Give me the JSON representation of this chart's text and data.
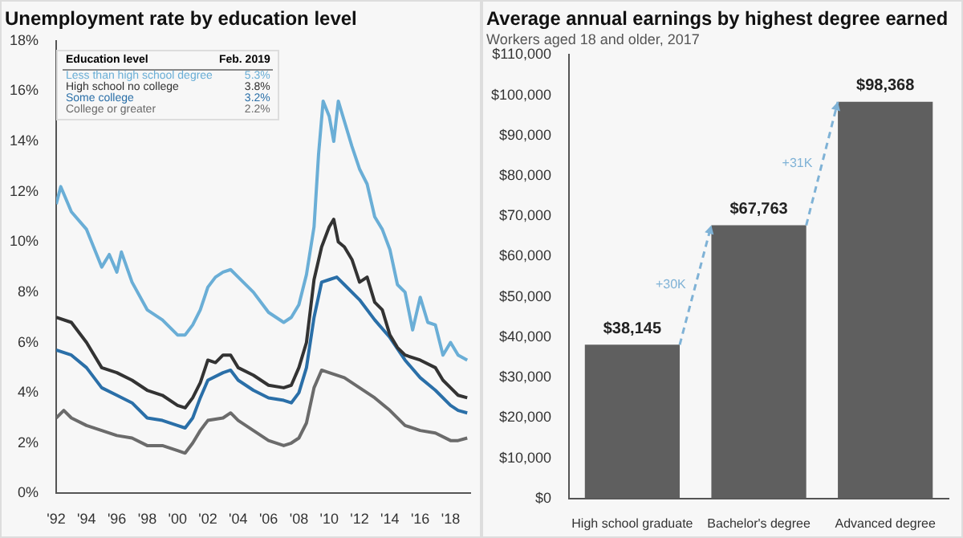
{
  "chart_data": [
    {
      "type": "line",
      "title": "Unemployment rate by education level",
      "legend_title": "Education level",
      "legend": "top left",
      "marker": "none",
      "grid": false,
      "annotations": [
        "Feb. 2019",
        "5.3%",
        "3.8%",
        "3.2%",
        "2.2%"
      ],
      "xlim": [
        1992,
        2019.3
      ],
      "xticks": [
        {
          "value": 1992,
          "label": "'92"
        },
        {
          "value": 1994,
          "label": "'94"
        },
        {
          "value": 1996,
          "label": "'96"
        },
        {
          "value": 1998,
          "label": "'98"
        },
        {
          "value": 2000,
          "label": "'00"
        },
        {
          "value": 2002,
          "label": "'02"
        },
        {
          "value": 2004,
          "label": "'04"
        },
        {
          "value": 2006,
          "label": "'06"
        },
        {
          "value": 2008,
          "label": "'08"
        },
        {
          "value": 2010,
          "label": "'10"
        },
        {
          "value": 2012,
          "label": "'12"
        },
        {
          "value": 2014,
          "label": "'14"
        },
        {
          "value": 2016,
          "label": "'16"
        },
        {
          "value": 2018,
          "label": "'18"
        }
      ],
      "ylim": [
        0,
        18
      ],
      "yticks": [
        {
          "value": 0,
          "label": "0%"
        },
        {
          "value": 2,
          "label": "2%"
        },
        {
          "value": 4,
          "label": "4%"
        },
        {
          "value": 6,
          "label": "6%"
        },
        {
          "value": 8,
          "label": "8%"
        },
        {
          "value": 10,
          "label": "10%"
        },
        {
          "value": 12,
          "label": "12%"
        },
        {
          "value": 14,
          "label": "14%"
        },
        {
          "value": 16,
          "label": "16%"
        },
        {
          "value": 18,
          "label": "18%"
        }
      ],
      "series": [
        {
          "name": "Less than high school degree",
          "color": "#6aaed6",
          "x": [
            1992,
            1992.3,
            1993,
            1994,
            1995,
            1995.5,
            1996,
            1996.3,
            1997,
            1998,
            1999,
            2000,
            2000.5,
            2001,
            2001.5,
            2002,
            2002.5,
            2003,
            2003.5,
            2004,
            2005,
            2006,
            2007,
            2007.5,
            2008,
            2008.5,
            2009,
            2009.3,
            2009.6,
            2010,
            2010.3,
            2010.6,
            2011,
            2011.5,
            2012,
            2012.5,
            2013,
            2013.5,
            2014,
            2014.5,
            2015,
            2015.5,
            2016,
            2016.5,
            2017,
            2017.5,
            2018,
            2018.5,
            2019.1
          ],
          "values": [
            11.5,
            12.2,
            11.2,
            10.5,
            9.0,
            9.5,
            8.8,
            9.6,
            8.4,
            7.3,
            6.9,
            6.3,
            6.3,
            6.7,
            7.3,
            8.2,
            8.6,
            8.8,
            8.9,
            8.6,
            8.0,
            7.2,
            6.8,
            7.0,
            7.5,
            8.7,
            10.6,
            13.5,
            15.6,
            15.0,
            14.0,
            15.6,
            14.8,
            13.8,
            12.9,
            12.3,
            11.0,
            10.5,
            9.7,
            8.3,
            8.0,
            6.5,
            7.8,
            6.8,
            6.7,
            5.5,
            6.0,
            5.5,
            5.3
          ]
        },
        {
          "name": "High school no college",
          "color": "#333333",
          "x": [
            1992,
            1993,
            1994,
            1995,
            1996,
            1997,
            1998,
            1999,
            2000,
            2000.5,
            2001,
            2001.5,
            2002,
            2002.5,
            2003,
            2003.5,
            2004,
            2005,
            2006,
            2007,
            2007.5,
            2008,
            2008.5,
            2009,
            2009.5,
            2010,
            2010.3,
            2010.6,
            2011,
            2011.5,
            2012,
            2012.5,
            2013,
            2013.5,
            2014,
            2014.5,
            2015,
            2016,
            2017,
            2017.5,
            2018,
            2018.5,
            2019.1
          ],
          "values": [
            7.0,
            6.8,
            6.0,
            5.0,
            4.8,
            4.5,
            4.1,
            3.9,
            3.5,
            3.4,
            3.8,
            4.4,
            5.3,
            5.2,
            5.5,
            5.5,
            5.0,
            4.7,
            4.3,
            4.2,
            4.3,
            5.0,
            6.0,
            8.5,
            9.8,
            10.6,
            10.9,
            10.0,
            9.8,
            9.3,
            8.4,
            8.6,
            7.6,
            7.3,
            6.3,
            5.8,
            5.5,
            5.3,
            5.0,
            4.5,
            4.2,
            3.9,
            3.8
          ]
        },
        {
          "name": "Some college",
          "color": "#2a6fa8",
          "x": [
            1992,
            1993,
            1994,
            1995,
            1996,
            1997,
            1998,
            1999,
            2000,
            2000.5,
            2001,
            2001.5,
            2002,
            2003,
            2003.5,
            2004,
            2005,
            2006,
            2007,
            2007.5,
            2008,
            2008.5,
            2009,
            2009.5,
            2010,
            2010.5,
            2011,
            2012,
            2013,
            2014,
            2015,
            2016,
            2017,
            2018,
            2018.5,
            2019.1
          ],
          "values": [
            5.7,
            5.5,
            5.0,
            4.2,
            3.9,
            3.6,
            3.0,
            2.9,
            2.7,
            2.6,
            3.0,
            3.8,
            4.5,
            4.8,
            4.9,
            4.5,
            4.1,
            3.8,
            3.7,
            3.6,
            4.0,
            5.0,
            7.0,
            8.4,
            8.5,
            8.6,
            8.3,
            7.7,
            6.9,
            6.2,
            5.3,
            4.6,
            4.1,
            3.5,
            3.3,
            3.2
          ]
        },
        {
          "name": "College or greater",
          "color": "#6b6b6b",
          "x": [
            1992,
            1992.5,
            1993,
            1994,
            1995,
            1996,
            1997,
            1998,
            1999,
            2000,
            2000.5,
            2001,
            2001.5,
            2002,
            2003,
            2003.5,
            2004,
            2005,
            2006,
            2007,
            2007.5,
            2008,
            2008.5,
            2009,
            2009.5,
            2010,
            2011,
            2012,
            2013,
            2014,
            2015,
            2016,
            2017,
            2018,
            2018.5,
            2019.1
          ],
          "values": [
            3.0,
            3.3,
            3.0,
            2.7,
            2.5,
            2.3,
            2.2,
            1.9,
            1.9,
            1.7,
            1.6,
            2.0,
            2.5,
            2.9,
            3.0,
            3.2,
            2.9,
            2.5,
            2.1,
            1.9,
            2.0,
            2.2,
            2.8,
            4.2,
            4.9,
            4.8,
            4.6,
            4.2,
            3.8,
            3.3,
            2.7,
            2.5,
            2.4,
            2.1,
            2.1,
            2.2
          ]
        }
      ]
    },
    {
      "type": "bar",
      "title": "Average annual earnings by highest degree earned",
      "subtitle": "Workers aged 18 and older, 2017",
      "grid": false,
      "legend": false,
      "annotations": [
        "+30K",
        "+31K"
      ],
      "categories": [
        "High school graduate",
        "Bachelor's degree",
        "Advanced degree"
      ],
      "values": [
        38145,
        67763,
        98368
      ],
      "color": "#5f5f5f",
      "value_labels": [
        "$38,145",
        "$67,763",
        "$98,368"
      ],
      "ylim": [
        0,
        110000
      ],
      "yticks": [
        {
          "value": 0,
          "label": "$0"
        },
        {
          "value": 10000,
          "label": "$10,000"
        },
        {
          "value": 20000,
          "label": "$20,000"
        },
        {
          "value": 30000,
          "label": "$30,000"
        },
        {
          "value": 40000,
          "label": "$40,000"
        },
        {
          "value": 50000,
          "label": "$50,000"
        },
        {
          "value": 60000,
          "label": "$60,000"
        },
        {
          "value": 70000,
          "label": "$70,000"
        },
        {
          "value": 80000,
          "label": "$80,000"
        },
        {
          "value": 90000,
          "label": "$90,000"
        },
        {
          "value": 100000,
          "label": "$100,000"
        },
        {
          "value": 110000,
          "label": "$110,000"
        }
      ]
    }
  ]
}
